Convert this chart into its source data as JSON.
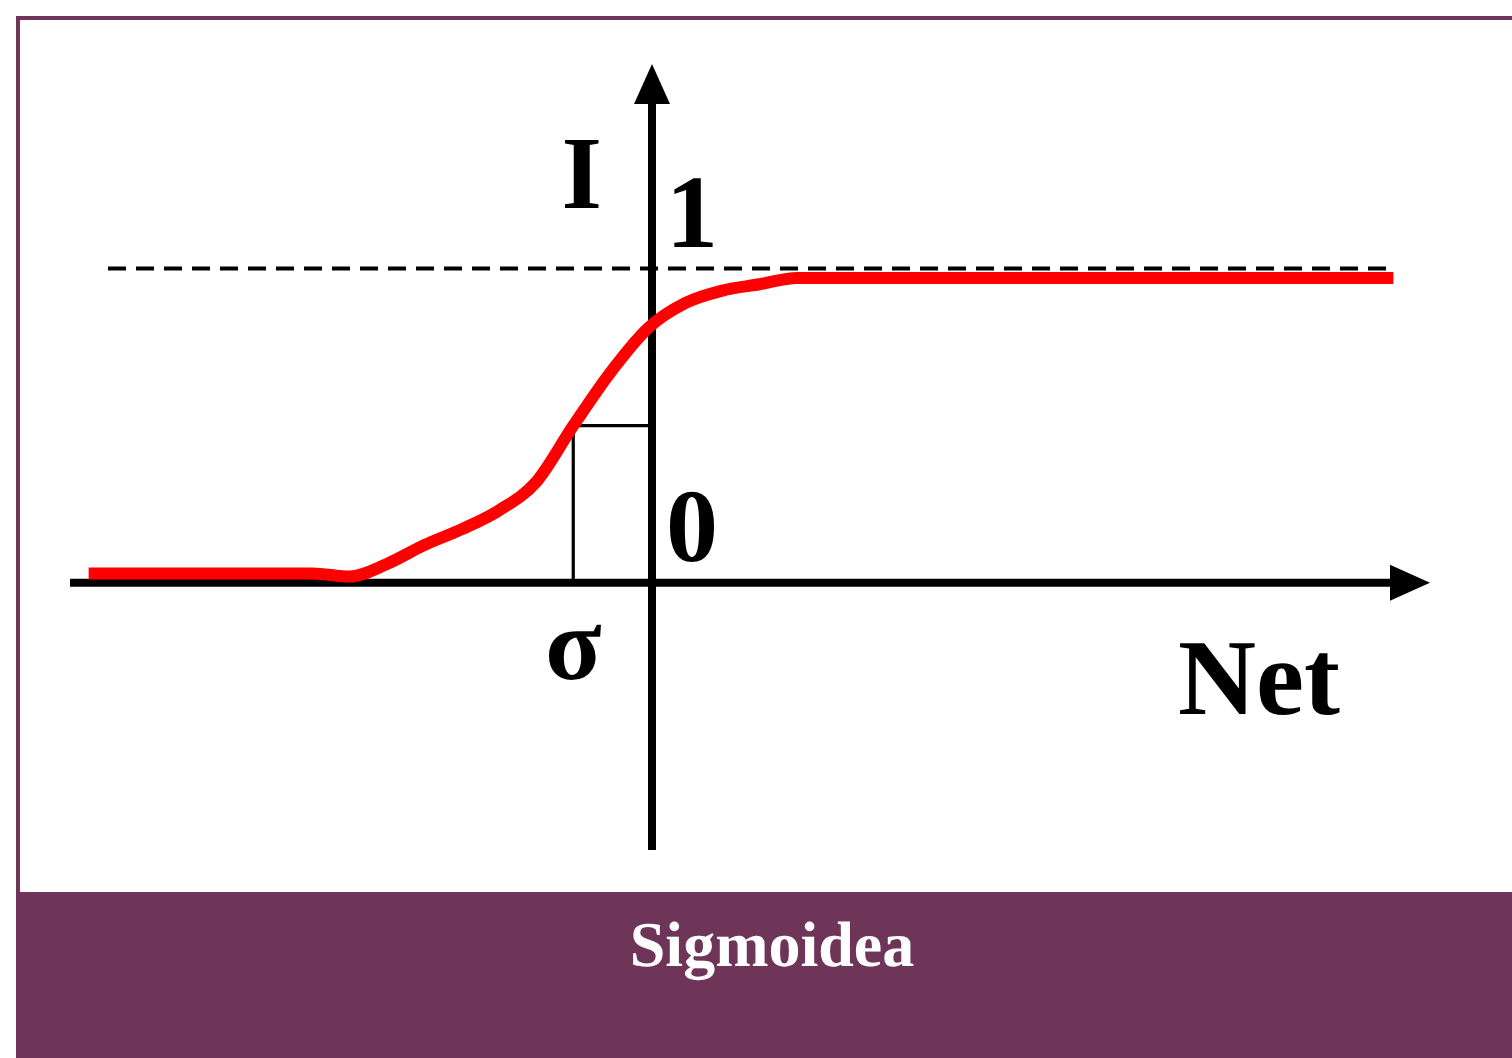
{
  "chart_data": {
    "type": "line",
    "title": "Sigmoidea",
    "xlabel": "Net",
    "ylabel": "I",
    "categories": [
      null,
      null,
      null,
      null,
      null,
      null,
      null,
      null,
      null,
      null,
      null,
      null,
      null,
      "σ",
      null,
      null,
      null,
      null,
      null,
      null,
      null,
      null,
      null,
      null,
      null,
      null,
      null,
      null,
      null,
      null,
      null,
      null,
      null,
      null,
      null,
      null
    ],
    "series": [
      {
        "color": "#ff0000",
        "values": [
          0.03,
          0.03,
          0.03,
          0.03,
          0.03,
          0.03,
          0.03,
          0.02,
          0.06,
          0.12,
          0.17,
          0.23,
          0.32,
          0.5,
          0.67,
          0.81,
          0.89,
          0.93,
          0.95,
          0.97,
          0.97,
          0.97,
          0.97,
          0.97,
          0.97,
          0.97,
          0.97,
          0.97,
          0.97,
          0.97,
          0.97,
          0.97,
          0.97,
          0.97,
          0.97,
          0.97
        ]
      }
    ],
    "ylim": [
      -0.85,
      1.6
    ],
    "yticks": [
      0,
      1
    ],
    "ref_lines": [
      {
        "axis": "y",
        "value": 1,
        "color": "#000000",
        "line_style": "dashed"
      }
    ]
  }
}
